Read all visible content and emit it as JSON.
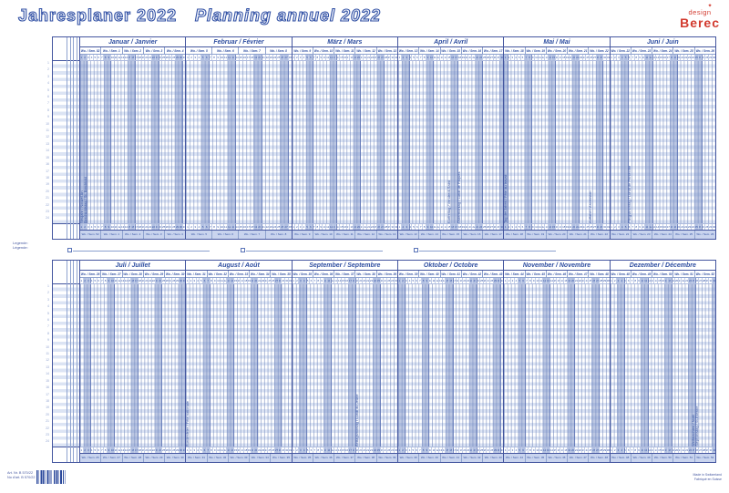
{
  "title_de": "Jahresplaner 2022",
  "title_fr": "Planning annuel 2022",
  "logo": {
    "design": "design",
    "brand": "Berec",
    "glyph": "leaf-icon"
  },
  "legend": {
    "de": "Legende:",
    "fr": "Légende:"
  },
  "week_label_prefix": "Wo. / Sem.",
  "rows": 24,
  "colors": {
    "accent_blue": "#2e4ea0",
    "grid_blue": "#44569f",
    "light_line": "#b7c4e4",
    "stripe": "#dce4f4",
    "weekend": "#7a90c6",
    "band_bg": "#c9d4ee",
    "logo_red": "#d23a2e"
  },
  "footer": {
    "art_line1": "Art. Nr. B 570/22",
    "art_line2": "No d'art. B 570/22",
    "right_line1": "Made in Switzerland",
    "right_line2": "Fabriqué en Suisse"
  },
  "halves": [
    {
      "months": [
        {
          "name_de": "Januar",
          "name_fr": "Janvier",
          "days": 31,
          "first_dow": 5,
          "weeks": [
            52,
            1,
            2,
            3,
            4
          ],
          "holidays": [
            {
              "day": 1,
              "label": "Neujahr / Nouvel An"
            },
            {
              "day": 2,
              "label": "Berchtoldstag / St. Berchtold"
            }
          ]
        },
        {
          "name_de": "Februar",
          "name_fr": "Février",
          "days": 28,
          "first_dow": 1,
          "weeks": [
            5,
            6,
            7,
            8
          ],
          "holidays": []
        },
        {
          "name_de": "März",
          "name_fr": "Mars",
          "days": 31,
          "first_dow": 1,
          "weeks": [
            9,
            10,
            11,
            12,
            13
          ],
          "holidays": []
        },
        {
          "name_de": "April",
          "name_fr": "Avril",
          "days": 30,
          "first_dow": 4,
          "weeks": [
            13,
            14,
            15,
            16,
            17
          ],
          "holidays": [
            {
              "day": 15,
              "label": "Karfreitag / Vendredi-Saint"
            },
            {
              "day": 18,
              "label": "Ostermontag / Lundi de Pâques"
            }
          ]
        },
        {
          "name_de": "Mai",
          "name_fr": "Mai",
          "days": 31,
          "first_dow": 6,
          "weeks": [
            18,
            19,
            20,
            21,
            22
          ],
          "holidays": [
            {
              "day": 1,
              "label": "Tag der Arbeit / Fête du travail"
            },
            {
              "day": 26,
              "label": "Auffahrt / Ascension"
            }
          ]
        },
        {
          "name_de": "Juni",
          "name_fr": "Juin",
          "days": 30,
          "first_dow": 2,
          "weeks": [
            22,
            23,
            24,
            25,
            26
          ],
          "holidays": [
            {
              "day": 6,
              "label": "Pfingstmontag / Lundi de Pentecôte"
            }
          ]
        }
      ]
    },
    {
      "months": [
        {
          "name_de": "Juli",
          "name_fr": "Juillet",
          "days": 31,
          "first_dow": 4,
          "weeks": [
            26,
            27,
            28,
            29,
            30
          ],
          "holidays": []
        },
        {
          "name_de": "August",
          "name_fr": "Août",
          "days": 31,
          "first_dow": 0,
          "weeks": [
            31,
            32,
            33,
            34,
            35
          ],
          "holidays": [
            {
              "day": 1,
              "label": "Bundesfeier / Fête nationale"
            }
          ]
        },
        {
          "name_de": "September",
          "name_fr": "Septembre",
          "days": 30,
          "first_dow": 3,
          "weeks": [
            35,
            36,
            37,
            38,
            39
          ],
          "holidays": [
            {
              "day": 19,
              "label": "Bettagsmontag / Lundi du Jeûne"
            }
          ]
        },
        {
          "name_de": "Oktober",
          "name_fr": "Octobre",
          "days": 31,
          "first_dow": 5,
          "weeks": [
            39,
            40,
            41,
            42,
            43
          ],
          "holidays": []
        },
        {
          "name_de": "November",
          "name_fr": "Novembre",
          "days": 30,
          "first_dow": 1,
          "weeks": [
            44,
            45,
            46,
            47,
            48
          ],
          "holidays": []
        },
        {
          "name_de": "Dezember",
          "name_fr": "Décembre",
          "days": 31,
          "first_dow": 3,
          "weeks": [
            48,
            49,
            50,
            51,
            52
          ],
          "holidays": [
            {
              "day": 25,
              "label": "Weihnachten / Noël"
            },
            {
              "day": 26,
              "label": "Stephanstag / St-Etienne"
            }
          ]
        }
      ]
    }
  ]
}
